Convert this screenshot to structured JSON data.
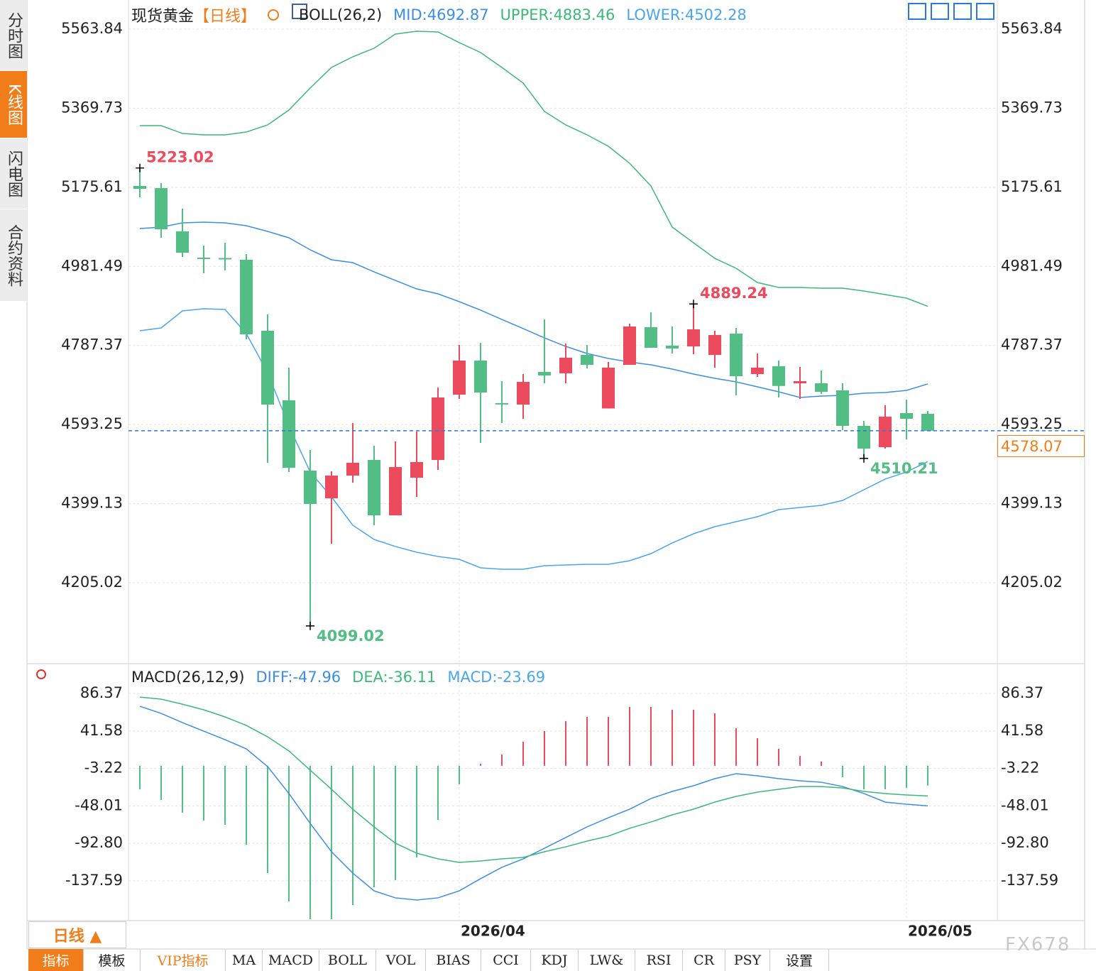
{
  "ui": {
    "side_tabs": [
      "分时图",
      "K线图",
      "闪电图",
      "合约资料"
    ],
    "active_side_tab": 1,
    "period_button": "日线 ▲",
    "bottom_tabs": [
      "指标",
      "模板",
      "VIP指标",
      "MA",
      "MACD",
      "BOLL",
      "VOL",
      "BIAS",
      "CCI",
      "KDJ",
      "LW&",
      "RSI",
      "CR",
      "PSY",
      "设置"
    ],
    "active_bottom_tab": 0,
    "highlight_bottom_tab": 2,
    "watermark": "FX678"
  },
  "chart_data": [
    {
      "type": "candlestick",
      "title": "现货黄金",
      "subtitle": "【日线】",
      "indicator": "BOLL(26,2)",
      "categories": [
        null,
        null,
        null,
        null,
        null,
        null,
        null,
        null,
        null,
        null,
        null,
        null,
        null,
        null,
        null,
        "2026/04",
        null,
        null,
        null,
        null,
        null,
        null,
        null,
        null,
        null,
        null,
        null,
        null,
        null,
        null,
        null,
        null,
        null,
        null,
        null,
        null,
        "2026/05",
        null
      ],
      "open": [
        5178.8,
        5173.6,
        5067.4,
        5003.0,
        5002.0,
        4997.7,
        4823.5,
        4652.7,
        4480.2,
        4412.3,
        4468.0,
        4506.4,
        4370.5,
        4462.8,
        4506.4,
        4666.7,
        4750.3,
        4646.0,
        4642.3,
        4722.4,
        4719.0,
        4764.2,
        4632.8,
        4739.8,
        4832.2,
        4786.9,
        4785.1,
        4764.2,
        4816.5,
        4717.2,
        4736.3,
        4694.5,
        4694.5,
        4677.1,
        4590.0,
        4537.7,
        4621.4,
        4619.6
      ],
      "high": [
        5223.02,
        5185.8,
        5123.1,
        5032.5,
        5039.5,
        5011.6,
        4863.5,
        4732.9,
        4530.8,
        4478.5,
        4596.9,
        4541.2,
        4551.7,
        4576.1,
        4684.1,
        4788.7,
        4793.9,
        4699.8,
        4717.2,
        4851.3,
        4792.1,
        4788.6,
        4746.8,
        4840.9,
        4868.7,
        4833.9,
        4889.24,
        4823.5,
        4830.4,
        4767.7,
        4750.3,
        4734.6,
        4725.9,
        4694.5,
        4602.2,
        4640.5,
        4654.5,
        4626.6
      ],
      "low": [
        5151.0,
        5051.7,
        5004.6,
        4964.6,
        4971.5,
        4802.5,
        4499.4,
        4476.7,
        4099.02,
        4300.8,
        4450.6,
        4346.1,
        4370.5,
        4415.8,
        4482.0,
        4656.2,
        4548.2,
        4597.0,
        4607.4,
        4694.5,
        4694.5,
        4731.1,
        4632.8,
        4739.8,
        4781.7,
        4767.7,
        4766.0,
        4732.9,
        4664.9,
        4710.2,
        4659.7,
        4656.2,
        4668.4,
        4579.5,
        4510.21,
        4534.2,
        4556.9,
        4577.2
      ],
      "close": [
        5171.8,
        5072.6,
        5015.1,
        5001.2,
        4999.0,
        4814.7,
        4642.3,
        4487.2,
        4398.4,
        4468.0,
        4499.4,
        4370.5,
        4488.9,
        4501.2,
        4659.7,
        4750.3,
        4671.9,
        4645.0,
        4698.0,
        4713.7,
        4757.3,
        4739.8,
        4733.0,
        4833.9,
        4781.7,
        4779.9,
        4826.9,
        4813.0,
        4712.0,
        4732.9,
        4688.0,
        4699.8,
        4673.6,
        4590.0,
        4534.2,
        4612.6,
        4607.4,
        4578.07
      ],
      "up_color": "#eb4b5c",
      "down_color": "#52bd84",
      "overlays": [
        {
          "name": "MID:",
          "color": "#3c8fe0",
          "values": [
            5074.3,
            5077.8,
            5088.3,
            5090.0,
            5088.3,
            5081.3,
            5067.4,
            5051.7,
            5022.1,
            4997.7,
            4990.7,
            4968.0,
            4947.1,
            4926.2,
            4914.0,
            4894.9,
            4874.0,
            4851.3,
            4828.7,
            4806.0,
            4785.1,
            4767.7,
            4755.5,
            4746.8,
            4739.8,
            4729.4,
            4717.2,
            4706.7,
            4698.0,
            4685.8,
            4673.6,
            4659.7,
            4663.2,
            4664.9,
            4670.2,
            4671.9,
            4677.1,
            4692.87
          ]
        },
        {
          "name": "UPPER:",
          "color": "#3cb878",
          "values": [
            5326.9,
            5326.9,
            5307.8,
            5304.3,
            5304.3,
            5311.2,
            5328.7,
            5365.2,
            5419.3,
            5469.8,
            5495.9,
            5516.8,
            5551.7,
            5558.6,
            5556.9,
            5530.7,
            5506.4,
            5469.8,
            5431.4,
            5361.8,
            5328.7,
            5304.3,
            5276.4,
            5234.6,
            5178.8,
            5077.8,
            5039.5,
            5001.2,
            4976.8,
            4941.9,
            4929.7,
            4929.7,
            4928.0,
            4928.0,
            4921.0,
            4912.3,
            4903.6,
            4883.46
          ]
        },
        {
          "name": "LOWER:",
          "color": "#4aa6ec",
          "values": [
            4823.5,
            4830.4,
            4872.2,
            4877.5,
            4875.7,
            4816.5,
            4720.7,
            4590.0,
            4476.8,
            4415.8,
            4346.1,
            4311.3,
            4293.9,
            4279.9,
            4269.5,
            4262.5,
            4241.6,
            4238.1,
            4238.1,
            4246.8,
            4248.6,
            4250.3,
            4250.3,
            4259.0,
            4276.4,
            4302.6,
            4325.2,
            4342.6,
            4354.8,
            4367.0,
            4384.4,
            4389.7,
            4394.9,
            4407.1,
            4433.2,
            4459.4,
            4476.8,
            4502.28
          ]
        }
      ],
      "annotations": [
        {
          "index": 0,
          "at": "high",
          "color": "#eb4b5c"
        },
        {
          "index": 8,
          "at": "low",
          "color": "#52bd84"
        },
        {
          "index": 26,
          "at": "high",
          "color": "#eb4b5c"
        },
        {
          "index": 34,
          "at": "low",
          "color": "#52bd84"
        }
      ],
      "last_price_color": "#f07d1a",
      "ylim": [
        4015.1,
        5635.3
      ],
      "yticks": [
        5563.84,
        5369.73,
        5175.61,
        4981.49,
        4787.37,
        4593.25,
        4399.13,
        4205.02
      ],
      "grid": true
    },
    {
      "type": "macd",
      "title": "MACD(26,12,9)",
      "series": [
        {
          "name": "DIFF:",
          "color": "#3c8fe0",
          "values": [
            71.1,
            62.6,
            51.6,
            41.4,
            31.2,
            20.2,
            -1.0,
            -33.2,
            -68.9,
            -102.8,
            -128.3,
            -149.5,
            -157.9,
            -160.5,
            -157.9,
            -149.5,
            -135.0,
            -121.4,
            -111.3,
            -98.6,
            -85.8,
            -73.1,
            -62.1,
            -51.9,
            -39.2,
            -30.7,
            -23.9,
            -15.4,
            -9.5,
            -12.0,
            -15.4,
            -18.0,
            -19.7,
            -24.8,
            -33.2,
            -43.4,
            -46.0,
            -47.96
          ]
        },
        {
          "name": "DEA:",
          "color": "#3cb878",
          "values": [
            82.1,
            79.6,
            73.6,
            66.9,
            58.4,
            48.2,
            34.6,
            17.7,
            -5.3,
            -28.1,
            -51.9,
            -73.1,
            -92.6,
            -104.5,
            -111.3,
            -115.5,
            -113.8,
            -111.3,
            -109.6,
            -102.8,
            -96.9,
            -90.1,
            -84.1,
            -74.8,
            -67.2,
            -58.7,
            -51.9,
            -43.4,
            -36.6,
            -31.5,
            -28.1,
            -24.8,
            -24.8,
            -26.5,
            -30.7,
            -33.2,
            -34.9,
            -36.11
          ]
        }
      ],
      "histogram": {
        "name": "MACD:",
        "legend_color": "#4aa6ec",
        "up_color": "#eb4b5c",
        "down_color": "#52bd84",
        "values": [
          -28.1,
          -40.9,
          -56.1,
          -65.5,
          -70.6,
          -94.3,
          -128.3,
          -162.2,
          -183.4,
          -183.4,
          -166.4,
          -145.2,
          -136.7,
          -109.6,
          -64.6,
          -22.2,
          2.4,
          13.4,
          28.7,
          41.4,
          53.3,
          58.4,
          58.4,
          70.3,
          70.3,
          66.9,
          66.9,
          62.6,
          44.8,
          33.0,
          20.2,
          11.7,
          5.0,
          -13.7,
          -28.1,
          -28.1,
          -26.5,
          -23.69
        ]
      },
      "ylim": [
        -185.1,
        117.8
      ],
      "yticks": [
        86.37,
        41.58,
        -3.22,
        -48.01,
        {
          "value": -92.8,
          "label": "-92.80"
        },
        -137.59
      ],
      "grid": true
    }
  ]
}
